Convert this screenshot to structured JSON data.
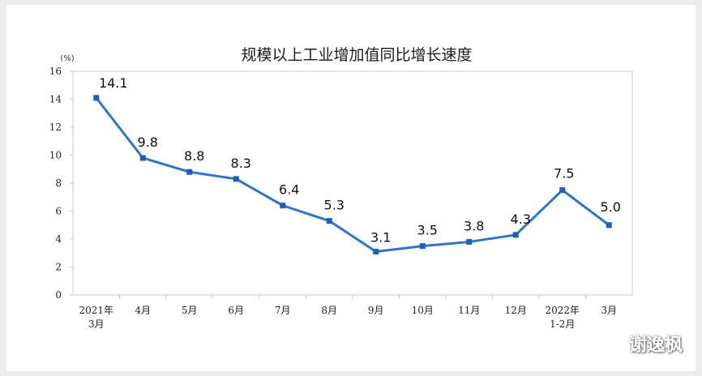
{
  "chart_data": {
    "type": "line",
    "title": "规模以上工业增加值同比增长速度",
    "unit_label": "(%)",
    "categories": [
      [
        "2021年",
        "3月"
      ],
      [
        "4月"
      ],
      [
        "5月"
      ],
      [
        "6月"
      ],
      [
        "7月"
      ],
      [
        "8月"
      ],
      [
        "9月"
      ],
      [
        "10月"
      ],
      [
        "11月"
      ],
      [
        "12月"
      ],
      [
        "2022年",
        "1-2月"
      ],
      [
        "3月"
      ]
    ],
    "series": [
      {
        "values": [
          14.1,
          9.8,
          8.8,
          8.3,
          6.4,
          5.3,
          3.1,
          3.5,
          3.8,
          4.3,
          7.5,
          5.0
        ]
      }
    ],
    "data_labels": [
      "14.1",
      "9.8",
      "8.8",
      "8.3",
      "6.4",
      "5.3",
      "3.1",
      "3.5",
      "3.8",
      "4.3",
      "7.5",
      "5.0"
    ],
    "y_ticks": [
      0,
      2,
      4,
      6,
      8,
      10,
      12,
      14,
      16
    ],
    "ylim": [
      0,
      16
    ],
    "grid": false,
    "line_color": "#2e75c8",
    "marker_color": "#1f5fb0",
    "axis_color": "#c8c8c8"
  },
  "watermark": "谢逸枫"
}
